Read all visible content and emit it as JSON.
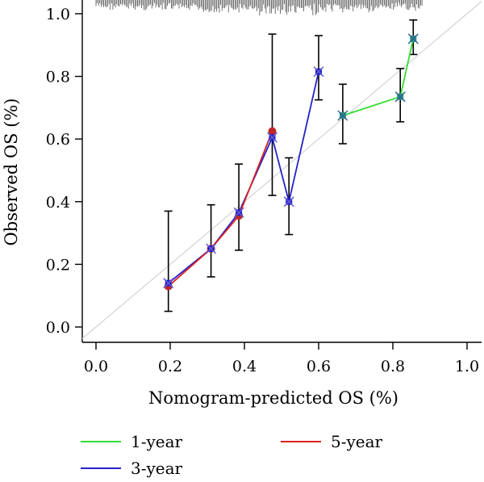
{
  "chart_data": {
    "type": "line",
    "title": "",
    "xlabel": "Nomogram-predicted OS (%)",
    "ylabel": "Observed OS (%)",
    "xlim": [
      0.0,
      1.0
    ],
    "ylim": [
      0.0,
      1.0
    ],
    "xticks": [
      "0.0",
      "0.2",
      "0.4",
      "0.6",
      "0.8",
      "1.0"
    ],
    "yticks": [
      "0.0",
      "0.2",
      "0.4",
      "0.6",
      "0.8",
      "1.0"
    ],
    "grid": false,
    "reference_line": "diagonal y = x (light gray)",
    "rug": "predicted-value distribution marks along top edge, approx. x 0.0 to 0.88",
    "legend_position": "bottom",
    "series": [
      {
        "name": "1-year",
        "color": "#33dd33",
        "points": [
          {
            "x": 0.665,
            "y": 0.675,
            "lo": 0.585,
            "hi": 0.775
          },
          {
            "x": 0.82,
            "y": 0.735,
            "lo": 0.655,
            "hi": 0.825
          },
          {
            "x": 0.855,
            "y": 0.92,
            "lo": 0.87,
            "hi": 0.98
          }
        ]
      },
      {
        "name": "3-year",
        "color": "#2222cc",
        "points": [
          {
            "x": 0.195,
            "y": 0.14,
            "lo": 0.05,
            "hi": 0.37
          },
          {
            "x": 0.31,
            "y": 0.25,
            "lo": 0.16,
            "hi": 0.39
          },
          {
            "x": 0.385,
            "y": 0.365,
            "lo": 0.245,
            "hi": 0.52
          },
          {
            "x": 0.475,
            "y": 0.605,
            "lo": 0.42,
            "hi": 0.935
          },
          {
            "x": 0.52,
            "y": 0.4,
            "lo": 0.295,
            "hi": 0.54
          },
          {
            "x": 0.6,
            "y": 0.815,
            "lo": 0.725,
            "hi": 0.93
          }
        ]
      },
      {
        "name": "5-year",
        "color": "#dd2222",
        "points": [
          {
            "x": 0.195,
            "y": 0.13
          },
          {
            "x": 0.31,
            "y": 0.25
          },
          {
            "x": 0.385,
            "y": 0.355
          },
          {
            "x": 0.475,
            "y": 0.625
          }
        ]
      }
    ],
    "legend": {
      "items": [
        {
          "label": "1-year",
          "color": "#33dd33"
        },
        {
          "label": "3-year",
          "color": "#2222cc"
        },
        {
          "label": "5-year",
          "color": "#dd2222"
        }
      ]
    }
  }
}
